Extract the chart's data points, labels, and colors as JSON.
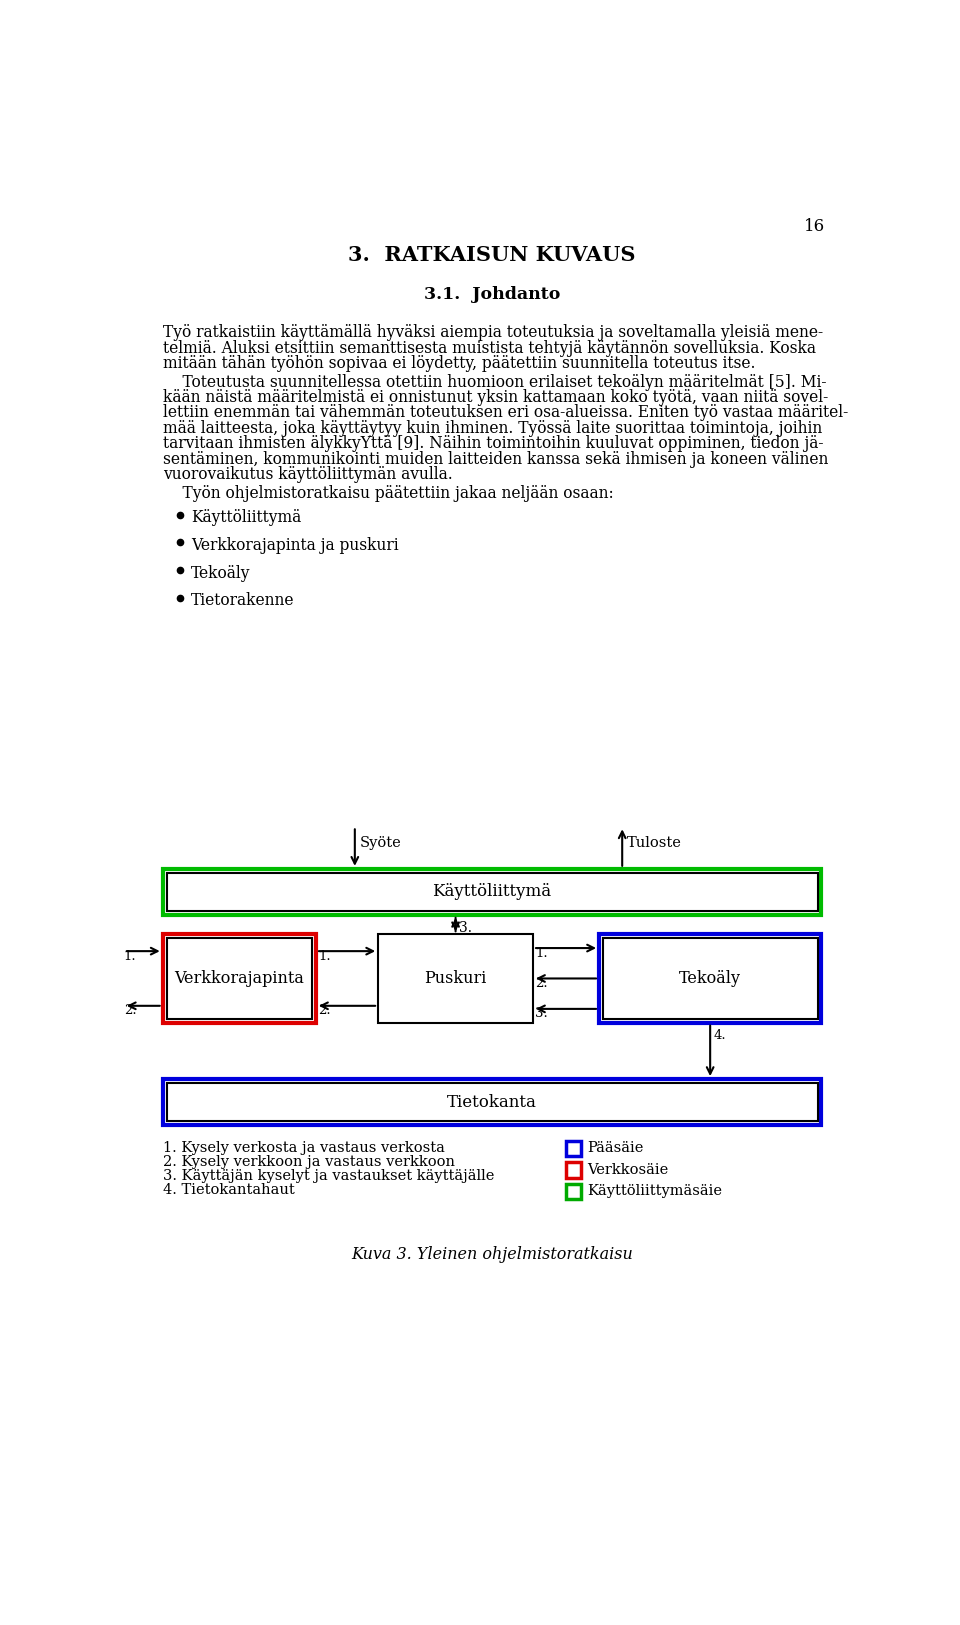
{
  "page_number": "16",
  "title": "3.  RATKAISUN KUVAUS",
  "subtitle": "3.1.  Johdanto",
  "bullets": [
    "Käyttöliittymä",
    "Verkkorajapinta ja puskuri",
    "Tekoäly",
    "Tietorakenne"
  ],
  "caption": "Kuva 3. Yleinen ohjelmistoratkaisu",
  "legend_items": [
    {
      "label": "Pääsäie",
      "color": "#0000dd"
    },
    {
      "label": "Verkkosäie",
      "color": "#dd0000"
    },
    {
      "label": "Käyttöliittymäsäie",
      "color": "#00aa00"
    }
  ],
  "footnotes": [
    "1. Kysely verkosta ja vastaus verkosta",
    "2. Kysely verkkoon ja vastaus verkkoon",
    "3. Käyttäjän kyselyt ja vastaukset käyttäjälle",
    "4. Tietokantahaut"
  ],
  "background_color": "#ffffff"
}
